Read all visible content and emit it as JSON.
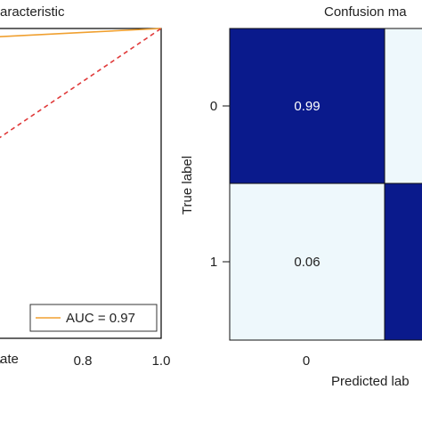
{
  "chart_data": [
    {
      "type": "line",
      "title": "aracteristic",
      "xlabel": "ate",
      "ylabel": "",
      "x_ticks": [
        "6",
        "0.8",
        "1.0"
      ],
      "series": [
        {
          "name": "AUC = 0.97",
          "color": "#f0a030",
          "style": "solid",
          "x": [
            0.6,
            1.0
          ],
          "y": [
            0.97,
            1.0
          ]
        },
        {
          "style": "dashed",
          "color": "#e03a3a",
          "x": [
            0.6,
            1.0
          ],
          "y": [
            0.6,
            1.0
          ]
        }
      ],
      "legend": {
        "position": "bottom-right",
        "entries": [
          "AUC = 0.97"
        ]
      }
    },
    {
      "type": "heatmap",
      "title": "Confusion ma",
      "xlabel": "Predicted lab",
      "ylabel": "True label",
      "x_ticks": [
        "0"
      ],
      "y_ticks": [
        "0",
        "1"
      ],
      "values": [
        [
          0.99,
          null
        ],
        [
          0.06,
          null
        ]
      ],
      "labels": [
        [
          "0.99",
          ""
        ],
        [
          "0.06",
          ""
        ]
      ],
      "colors": {
        "high": "#0a1a8c",
        "low": "#eef8fc"
      }
    }
  ]
}
